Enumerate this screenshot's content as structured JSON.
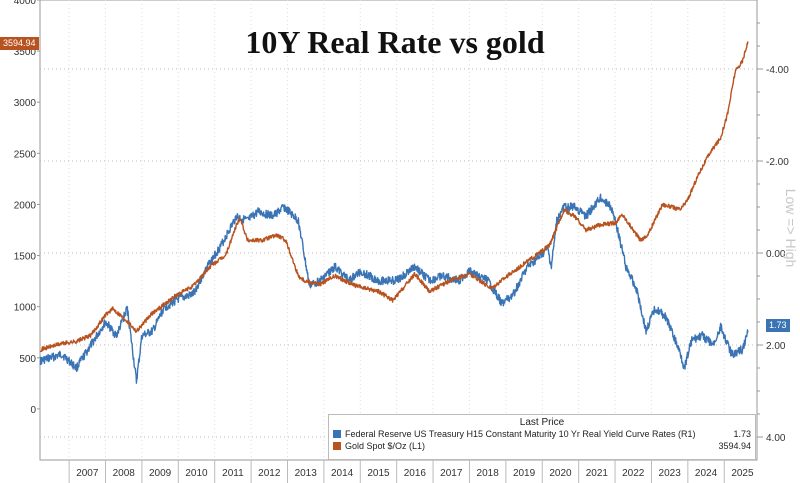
{
  "chart_data": {
    "type": "line",
    "title": "10Y Real Rate vs gold",
    "right_axis_label": "Low => High",
    "x_ticks": [
      "2007",
      "2008",
      "2009",
      "2010",
      "2011",
      "2012",
      "2013",
      "2014",
      "2015",
      "2016",
      "2017",
      "2018",
      "2019",
      "2020",
      "2021",
      "2022",
      "2023",
      "2024",
      "2025"
    ],
    "left_axis": {
      "ticks": [
        "0",
        "500",
        "1000",
        "1500",
        "2000",
        "2500",
        "3000",
        "3500",
        "4000"
      ],
      "ylim": [
        -500,
        4000
      ]
    },
    "right_axis": {
      "ticks": [
        "-4.00",
        "-2.00",
        "0.00",
        "2.00",
        "4.00"
      ],
      "ylim": [
        4.5,
        -5.5
      ],
      "inverted": true
    },
    "grid": true,
    "legend_placement": "bottom-right",
    "series": [
      {
        "name": "Federal Reserve US Treasury H15 Constant Maturity 10 Yr Real Yield Curve Rates  (R1)",
        "last_price": "1.73",
        "color": "#3a74b4",
        "axis": "right",
        "x": [
          2006.2,
          2006.8,
          2007.2,
          2007.6,
          2008.0,
          2008.3,
          2008.6,
          2008.85,
          2009.0,
          2009.3,
          2009.6,
          2010.0,
          2010.4,
          2010.8,
          2011.2,
          2011.6,
          2011.9,
          2012.2,
          2012.6,
          2012.9,
          2013.3,
          2013.6,
          2013.9,
          2014.3,
          2014.7,
          2015.0,
          2015.5,
          2016.0,
          2016.5,
          2016.9,
          2017.3,
          2017.7,
          2018.0,
          2018.5,
          2018.9,
          2019.2,
          2019.6,
          2019.9,
          2020.15,
          2020.25,
          2020.4,
          2020.6,
          2020.9,
          2021.2,
          2021.6,
          2021.9,
          2022.1,
          2022.3,
          2022.6,
          2022.85,
          2023.1,
          2023.4,
          2023.6,
          2023.8,
          2023.9,
          2024.1,
          2024.4,
          2024.7,
          2024.9,
          2025.2,
          2025.5,
          2025.65
        ],
        "values": [
          2.35,
          2.2,
          2.5,
          2.0,
          1.5,
          1.8,
          1.2,
          2.8,
          1.8,
          1.7,
          1.2,
          1.0,
          0.9,
          0.3,
          -0.2,
          -0.8,
          -0.7,
          -0.9,
          -0.8,
          -1.0,
          -0.7,
          0.7,
          0.6,
          0.3,
          0.6,
          0.4,
          0.6,
          0.6,
          0.3,
          0.6,
          0.5,
          0.6,
          0.4,
          0.6,
          1.1,
          0.9,
          0.3,
          0.1,
          -0.1,
          0.3,
          -0.7,
          -1.0,
          -1.0,
          -0.8,
          -1.2,
          -1.0,
          -0.4,
          0.3,
          0.8,
          1.7,
          1.2,
          1.4,
          1.8,
          2.2,
          2.5,
          1.9,
          1.8,
          2.0,
          1.6,
          2.2,
          2.1,
          1.73
        ]
      },
      {
        "name": "Gold Spot $/Oz  (L1)",
        "last_price": "3594.94",
        "color": "#b8531f",
        "axis": "left",
        "x": [
          2006.2,
          2006.8,
          2007.2,
          2007.6,
          2008.0,
          2008.2,
          2008.6,
          2008.85,
          2009.3,
          2009.9,
          2010.4,
          2010.9,
          2011.3,
          2011.6,
          2011.7,
          2011.9,
          2012.3,
          2012.7,
          2012.95,
          2013.3,
          2013.5,
          2013.9,
          2014.3,
          2014.9,
          2015.5,
          2015.9,
          2016.5,
          2016.9,
          2017.5,
          2018.0,
          2018.6,
          2019.0,
          2019.5,
          2019.9,
          2020.2,
          2020.6,
          2020.9,
          2021.2,
          2021.6,
          2022.0,
          2022.2,
          2022.7,
          2022.9,
          2023.3,
          2023.8,
          2024.0,
          2024.3,
          2024.6,
          2024.9,
          2025.1,
          2025.3,
          2025.5,
          2025.65
        ],
        "values": [
          580,
          640,
          660,
          720,
          920,
          980,
          860,
          760,
          940,
          1100,
          1200,
          1400,
          1500,
          1800,
          1870,
          1650,
          1650,
          1700,
          1650,
          1300,
          1250,
          1220,
          1300,
          1200,
          1150,
          1060,
          1320,
          1150,
          1260,
          1320,
          1180,
          1290,
          1420,
          1520,
          1600,
          1950,
          1880,
          1750,
          1800,
          1820,
          1900,
          1650,
          1700,
          2000,
          1950,
          2050,
          2300,
          2500,
          2650,
          2900,
          3300,
          3400,
          3594.94
        ]
      }
    ]
  },
  "legend": {
    "header": "Last Price"
  }
}
